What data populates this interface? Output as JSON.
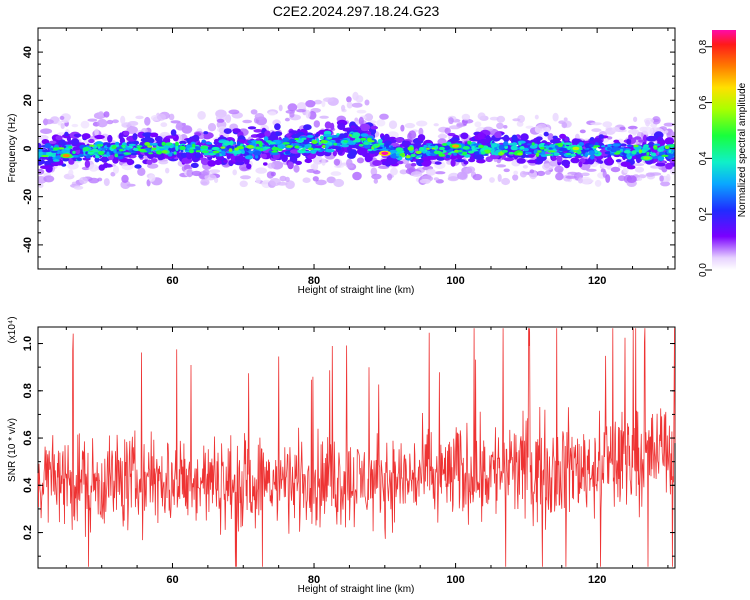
{
  "chart_data": [
    {
      "type": "heatmap",
      "title": "C2E2.2024.297.18.24.G23",
      "xlabel": "Height of straight line (km)",
      "ylabel": "Frequency (Hz)",
      "xlim": [
        41,
        131
      ],
      "ylim": [
        -50,
        50
      ],
      "x_ticks": [
        "60",
        "80",
        "100",
        "120"
      ],
      "y_ticks": [
        "40",
        "20",
        "0",
        "-20",
        "-40"
      ],
      "colorbar": {
        "label": "Normalized spectral amplitude",
        "range": [
          0.0,
          0.86
        ],
        "ticks": [
          "0.0",
          "0.2",
          "0.4",
          "0.6",
          "0.8"
        ]
      },
      "band": {
        "x": [
          41,
          50,
          60,
          70,
          80,
          86,
          92,
          100,
          110,
          120,
          131
        ],
        "center_hz": [
          -2,
          -1,
          0,
          0,
          2,
          4,
          -2,
          0,
          0,
          -1,
          -1
        ],
        "halfwidth_hz": [
          6,
          7,
          6,
          7,
          8,
          8,
          5,
          6,
          6,
          6,
          6
        ],
        "peaks": [
          {
            "x": 45,
            "f": -3,
            "a": 0.72
          },
          {
            "x": 90,
            "f": -2,
            "a": 0.86
          },
          {
            "x": 100,
            "f": 1,
            "a": 0.7
          },
          {
            "x": 117,
            "f": 0,
            "a": 0.6
          },
          {
            "x": 127,
            "f": -4,
            "a": 0.55
          }
        ]
      }
    },
    {
      "type": "line",
      "title": "",
      "xlabel": "Height of straight line (km)",
      "ylabel": "SNR (10 * v/v)",
      "y_multiplier": "(x10⁴)",
      "xlim": [
        41,
        131
      ],
      "ylim": [
        0.05,
        1.07
      ],
      "x_ticks": [
        "60",
        "80",
        "100",
        "120"
      ],
      "y_ticks": [
        "1.0",
        "0.8",
        "0.6",
        "0.4",
        "0.2"
      ],
      "series": [
        {
          "color": "#ee3333",
          "envelope_x": [
            41,
            50,
            60,
            70,
            80,
            90,
            100,
            110,
            120,
            131
          ],
          "envelope_mean": [
            0.43,
            0.42,
            0.42,
            0.41,
            0.42,
            0.42,
            0.45,
            0.47,
            0.48,
            0.56
          ],
          "envelope_spread": [
            0.28,
            0.3,
            0.29,
            0.28,
            0.29,
            0.27,
            0.3,
            0.32,
            0.3,
            0.3
          ]
        }
      ]
    }
  ]
}
